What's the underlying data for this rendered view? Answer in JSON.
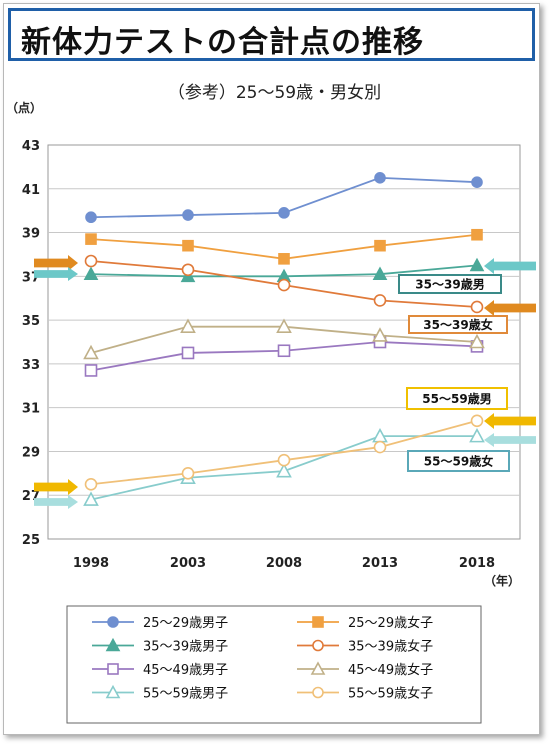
{
  "title": "新体力テストの合計点の推移",
  "chart_data": {
    "type": "line",
    "subtitle": "（参考）25〜59歳・男女別",
    "y_unit": "（点）",
    "x_unit": "（年）",
    "x": [
      "1998",
      "2003",
      "2008",
      "2013",
      "2018"
    ],
    "ylim": [
      25,
      43
    ],
    "yticks": [
      "25",
      "27",
      "29",
      "31",
      "33",
      "35",
      "37",
      "39",
      "41",
      "43"
    ],
    "grid": true,
    "legend_position": "bottom",
    "series": [
      {
        "name": "25〜29歳男子",
        "values": [
          39.7,
          39.8,
          39.9,
          41.5,
          41.3
        ],
        "color": "#6f8fd0",
        "marker": "circle",
        "filled": true
      },
      {
        "name": "25〜29歳女子",
        "values": [
          38.7,
          38.4,
          37.8,
          38.4,
          38.9
        ],
        "color": "#f0a040",
        "marker": "square",
        "filled": true
      },
      {
        "name": "35〜39歳男子",
        "values": [
          37.1,
          37.0,
          37.0,
          37.1,
          37.5
        ],
        "color": "#4aa898",
        "marker": "triangle",
        "filled": true
      },
      {
        "name": "35〜39歳女子",
        "values": [
          37.7,
          37.3,
          36.6,
          35.9,
          35.6
        ],
        "color": "#e07a3a",
        "marker": "circle",
        "filled": false
      },
      {
        "name": "45〜49歳男子",
        "values": [
          32.7,
          33.5,
          33.6,
          34.0,
          33.8
        ],
        "color": "#9a78c0",
        "marker": "square",
        "filled": false
      },
      {
        "name": "45〜49歳女子",
        "values": [
          33.5,
          34.7,
          34.7,
          34.3,
          34.0
        ],
        "color": "#c0b088",
        "marker": "triangle",
        "filled": false
      },
      {
        "name": "55〜59歳男子",
        "values": [
          26.8,
          27.8,
          28.1,
          29.7,
          29.7
        ],
        "color": "#88cccc",
        "marker": "triangle",
        "filled": false
      },
      {
        "name": "55〜59歳女子",
        "values": [
          27.5,
          28.0,
          28.6,
          29.2,
          30.4
        ],
        "color": "#f0c078",
        "marker": "circle",
        "filled": false
      }
    ],
    "callouts": [
      {
        "text": "35〜39歳男",
        "border": "#3a8a88"
      },
      {
        "text": "35〜39歳女",
        "border": "#e08a3a"
      },
      {
        "text": "55〜59歳男",
        "border": "#f0c000"
      },
      {
        "text": "55〜59歳女",
        "border": "#5aa8b8"
      }
    ],
    "arrow_colors": {
      "orange": "#e08a20",
      "teal": "#6cc8c8",
      "yellow": "#f0b800",
      "light_teal": "#a8dede"
    }
  }
}
